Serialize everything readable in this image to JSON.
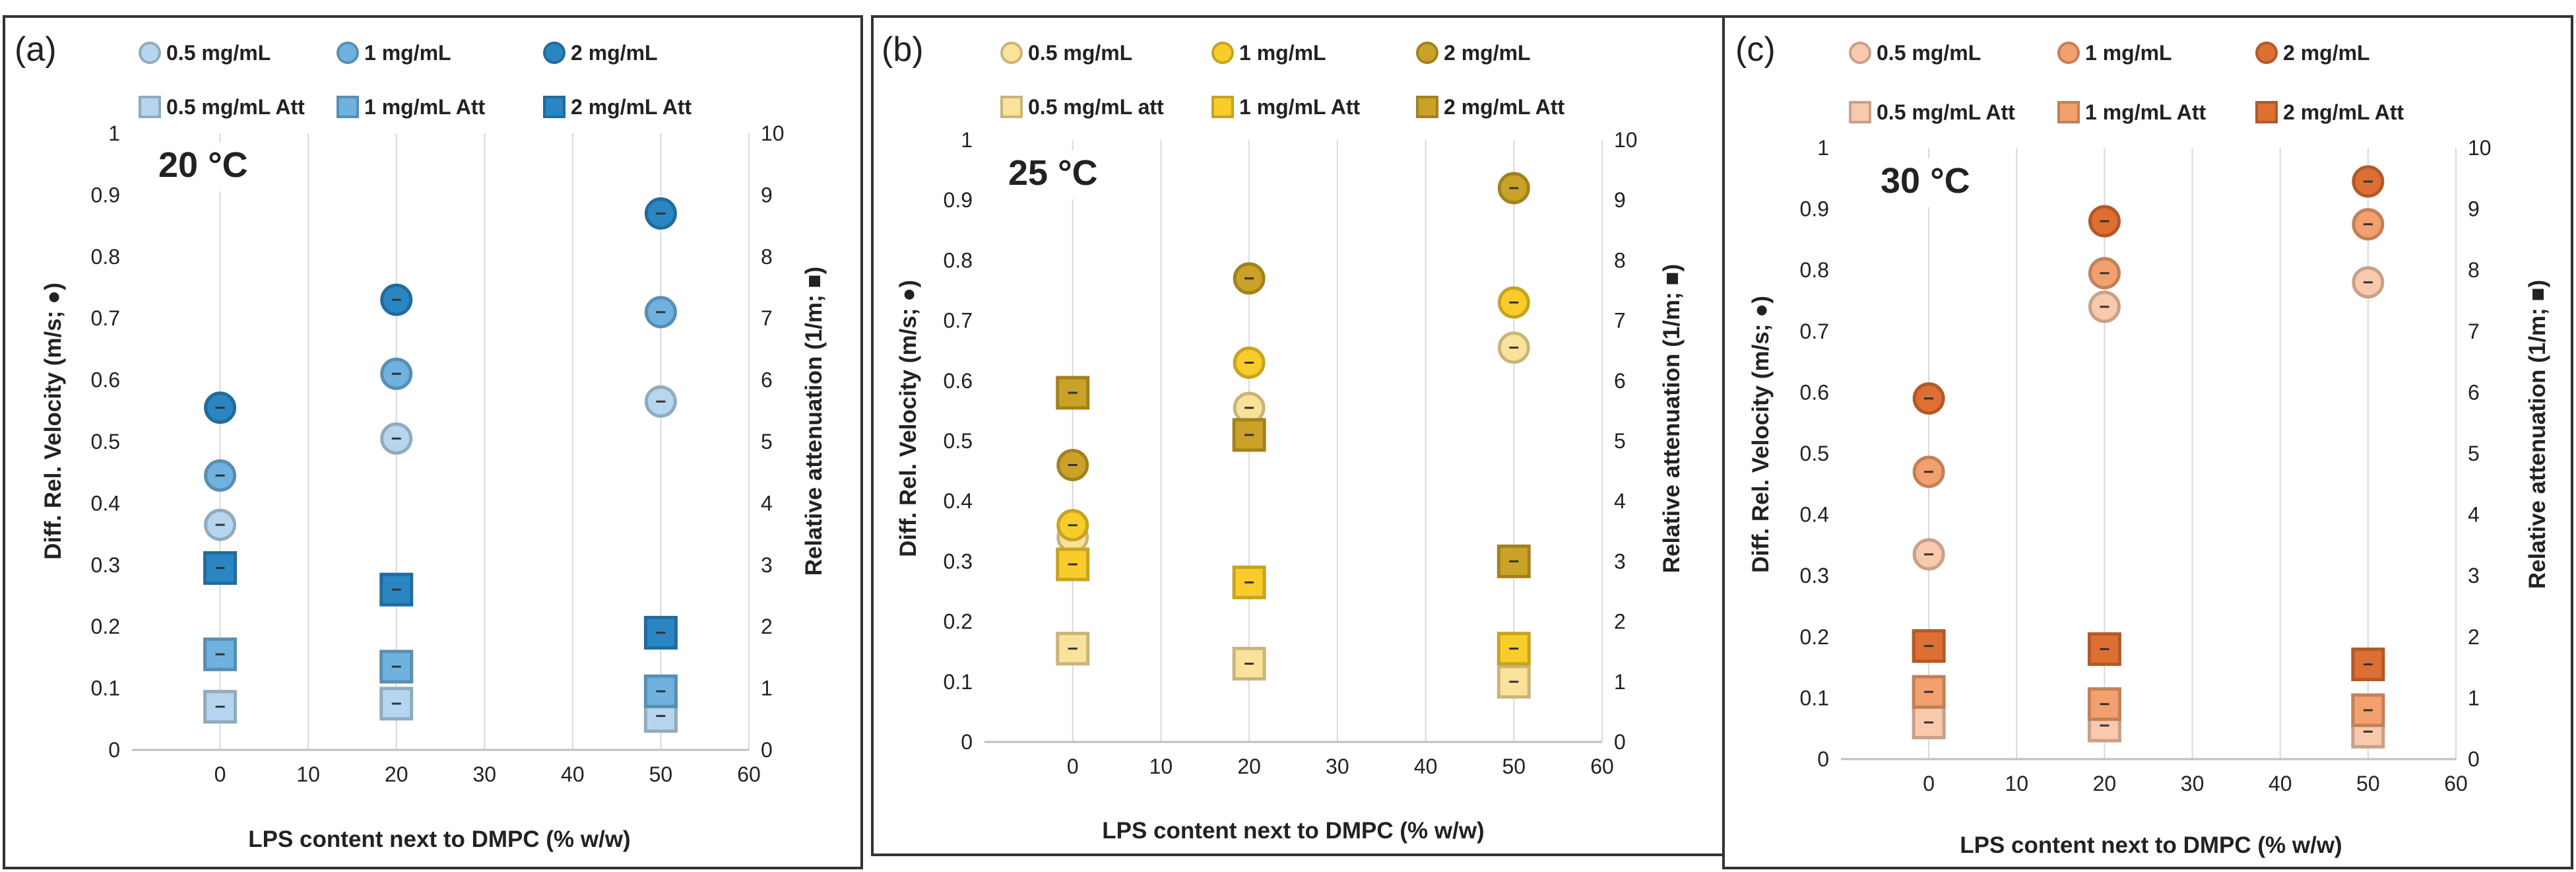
{
  "figure": {
    "y1_label": "Diff. Rel. Velocity (m/s; ●)",
    "y2_label": "Relative attenuation (1/m; ■)",
    "x_label": "LPS content next to DMPC (% w/w)"
  },
  "chart_data": [
    {
      "type": "scatter",
      "panel": "(a)",
      "temperature": "20 °C",
      "xlabel": "LPS content next to DMPC (% w/w)",
      "ylabel": "Diff. Rel. Velocity (m/s; ●)",
      "y2label": "Relative attenuation (1/m; ■)",
      "xlim": [
        -10,
        60
      ],
      "ylim": [
        0,
        1
      ],
      "y2lim": [
        0,
        10
      ],
      "x_ticks": [
        "0",
        "10",
        "20",
        "30",
        "40",
        "50",
        "60"
      ],
      "y_ticks": [
        "0",
        "0.1",
        "0.2",
        "0.3",
        "0.4",
        "0.5",
        "0.6",
        "0.7",
        "0.8",
        "0.9",
        "1"
      ],
      "y2_ticks": [
        "0",
        "1",
        "2",
        "3",
        "4",
        "5",
        "6",
        "7",
        "8",
        "9",
        "10"
      ],
      "series": [
        {
          "name": "0.5 mg/mL",
          "marker": "circle",
          "axis": "left",
          "color": "#b5d6ee",
          "x": [
            0,
            20,
            50
          ],
          "y": [
            0.365,
            0.505,
            0.565
          ]
        },
        {
          "name": "1 mg/mL",
          "marker": "circle",
          "axis": "left",
          "color": "#6fb2e0",
          "x": [
            0,
            20,
            50
          ],
          "y": [
            0.445,
            0.61,
            0.71
          ]
        },
        {
          "name": "2 mg/mL",
          "marker": "circle",
          "axis": "left",
          "color": "#2a86c3",
          "x": [
            0,
            20,
            50
          ],
          "y": [
            0.555,
            0.73,
            0.87
          ]
        },
        {
          "name": "0.5 mg/mL Att",
          "marker": "square",
          "axis": "right",
          "color": "#b5d6ee",
          "x": [
            0,
            20,
            50
          ],
          "y": [
            0.7,
            0.75,
            0.55
          ]
        },
        {
          "name": "1 mg/mL Att",
          "marker": "square",
          "axis": "right",
          "color": "#6fb2e0",
          "x": [
            0,
            20,
            50
          ],
          "y": [
            1.55,
            1.35,
            0.95
          ]
        },
        {
          "name": "2 mg/mL Att",
          "marker": "square",
          "axis": "right",
          "color": "#2a86c3",
          "x": [
            0,
            20,
            50
          ],
          "y": [
            2.95,
            2.6,
            1.9
          ]
        }
      ]
    },
    {
      "type": "scatter",
      "panel": "(b)",
      "temperature": "25 °C",
      "xlabel": "LPS content next to DMPC (% w/w)",
      "ylabel": "Diff. Rel. Velocity (m/s; ●)",
      "y2label": "Relative attenuation (1/m; ■)",
      "xlim": [
        -10,
        60
      ],
      "ylim": [
        0,
        1
      ],
      "y2lim": [
        0,
        10
      ],
      "x_ticks": [
        "0",
        "10",
        "20",
        "30",
        "40",
        "50",
        "60"
      ],
      "y_ticks": [
        "0",
        "0.1",
        "0.2",
        "0.3",
        "0.4",
        "0.5",
        "0.6",
        "0.7",
        "0.8",
        "0.9",
        "1"
      ],
      "y2_ticks": [
        "0",
        "1",
        "2",
        "3",
        "4",
        "5",
        "6",
        "7",
        "8",
        "9",
        "10"
      ],
      "series": [
        {
          "name": "0.5 mg/mL",
          "marker": "circle",
          "axis": "left",
          "color": "#fbe29a",
          "x": [
            0,
            20,
            50
          ],
          "y": [
            0.34,
            0.555,
            0.655
          ]
        },
        {
          "name": "1 mg/mL",
          "marker": "circle",
          "axis": "left",
          "color": "#f8cc2a",
          "x": [
            0,
            20,
            50
          ],
          "y": [
            0.36,
            0.63,
            0.73
          ]
        },
        {
          "name": "2 mg/mL",
          "marker": "circle",
          "axis": "left",
          "color": "#c9a227",
          "x": [
            0,
            20,
            50
          ],
          "y": [
            0.46,
            0.77,
            0.92
          ]
        },
        {
          "name": "0.5 mg/mL att",
          "marker": "square",
          "axis": "right",
          "color": "#fbe29a",
          "x": [
            0,
            20,
            50
          ],
          "y": [
            1.55,
            1.3,
            1.0
          ]
        },
        {
          "name": "1 mg/mL Att",
          "marker": "square",
          "axis": "right",
          "color": "#f8cc2a",
          "x": [
            0,
            20,
            50
          ],
          "y": [
            2.95,
            2.65,
            1.55
          ]
        },
        {
          "name": "2 mg/mL Att",
          "marker": "square",
          "axis": "right",
          "color": "#c9a227",
          "x": [
            0,
            20,
            50
          ],
          "y": [
            5.8,
            5.1,
            3.0
          ]
        }
      ]
    },
    {
      "type": "scatter",
      "panel": "(c)",
      "temperature": "30 °C",
      "xlabel": "LPS content next to DMPC (% w/w)",
      "ylabel": "Diff. Rel. Velocity (m/s; ●)",
      "y2label": "Relative attenuation (1/m; ■)",
      "xlim": [
        -10,
        60
      ],
      "ylim": [
        0,
        1
      ],
      "y2lim": [
        0,
        10
      ],
      "x_ticks": [
        "0",
        "10",
        "20",
        "30",
        "40",
        "50",
        "60"
      ],
      "y_ticks": [
        "0",
        "0.1",
        "0.2",
        "0.3",
        "0.4",
        "0.5",
        "0.6",
        "0.7",
        "0.8",
        "0.9",
        "1"
      ],
      "y2_ticks": [
        "0",
        "1",
        "2",
        "3",
        "4",
        "5",
        "6",
        "7",
        "8",
        "9",
        "10"
      ],
      "series": [
        {
          "name": "0.5 mg/mL",
          "marker": "circle",
          "axis": "left",
          "color": "#f9c9ad",
          "x": [
            0,
            20,
            50
          ],
          "y": [
            0.335,
            0.74,
            0.78
          ]
        },
        {
          "name": "1 mg/mL",
          "marker": "circle",
          "axis": "left",
          "color": "#f2a06e",
          "x": [
            0,
            20,
            50
          ],
          "y": [
            0.47,
            0.795,
            0.875
          ]
        },
        {
          "name": "2 mg/mL",
          "marker": "circle",
          "axis": "left",
          "color": "#de6f33",
          "x": [
            0,
            20,
            50
          ],
          "y": [
            0.59,
            0.88,
            0.945
          ]
        },
        {
          "name": "0.5 mg/mL Att",
          "marker": "square",
          "axis": "right",
          "color": "#f9c9ad",
          "x": [
            0,
            20,
            50
          ],
          "y": [
            0.6,
            0.55,
            0.45
          ]
        },
        {
          "name": "1 mg/mL Att",
          "marker": "square",
          "axis": "right",
          "color": "#f2a06e",
          "x": [
            0,
            20,
            50
          ],
          "y": [
            1.1,
            0.9,
            0.8
          ]
        },
        {
          "name": "2 mg/mL Att",
          "marker": "square",
          "axis": "right",
          "color": "#de6f33",
          "x": [
            0,
            20,
            50
          ],
          "y": [
            1.85,
            1.8,
            1.55
          ]
        }
      ]
    }
  ]
}
